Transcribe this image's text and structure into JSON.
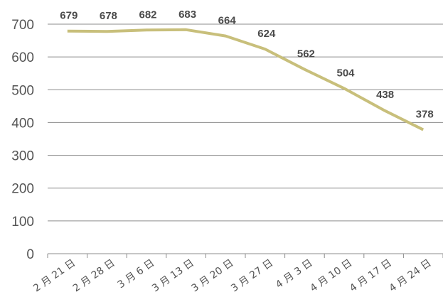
{
  "chart_data": {
    "type": "line",
    "categories": [
      "2 月 21 日",
      "2 月 28 日",
      "3 月 6 日",
      "3 月 13 日",
      "3 月 20 日",
      "3 月 27 日",
      "4 月 3 日",
      "4 月 10 日",
      "4 月 17 日",
      "4 月 24 日"
    ],
    "series": [
      {
        "values": [
          679,
          678,
          682,
          683,
          664,
          624,
          562,
          504,
          438,
          378
        ],
        "color": "#c8bf7b"
      }
    ],
    "ylim": [
      0,
      700
    ],
    "yticks": [
      0,
      100,
      200,
      300,
      400,
      500,
      600,
      700
    ],
    "grid": true,
    "data_labels": true
  }
}
